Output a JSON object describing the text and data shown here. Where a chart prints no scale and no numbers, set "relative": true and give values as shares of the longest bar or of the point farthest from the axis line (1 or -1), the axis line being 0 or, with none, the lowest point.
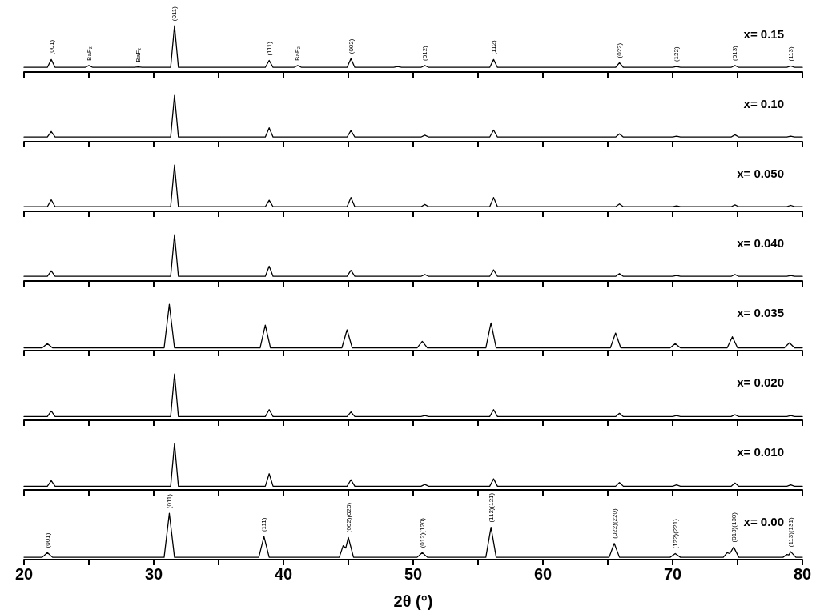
{
  "chart_data": [
    {
      "type": "line",
      "title": "x= 0.15",
      "relative": true,
      "color": "#000000",
      "marker": "none",
      "line_style": "solid",
      "tick_labels": false,
      "xlim": [
        20,
        80
      ],
      "xticks": [
        20,
        {
          "value": 25,
          "label": null
        },
        30,
        {
          "value": 35,
          "label": null
        },
        40,
        {
          "value": 45,
          "label": null
        },
        50,
        {
          "value": 55,
          "label": null
        },
        60,
        {
          "value": 65,
          "label": null
        },
        70,
        {
          "value": 75,
          "label": null
        },
        80
      ],
      "x": [
        20,
        21.8,
        22.1,
        22.4,
        24.7,
        25,
        25.3,
        28.5,
        28.8,
        29.1,
        31.3,
        31.6,
        31.9,
        38.6,
        38.9,
        39.2,
        40.8,
        41.1,
        41.4,
        44.9,
        45.2,
        45.5,
        48.5,
        48.8,
        49.1,
        50.6,
        50.9,
        51.2,
        55.9,
        56.2,
        56.5,
        65.6,
        65.9,
        66.2,
        70,
        70.3,
        70.6,
        74.5,
        74.8,
        75.1,
        78.8,
        79.1,
        79.4,
        80
      ],
      "values": [
        0.1,
        0.1,
        0.27,
        0.1,
        0.1,
        0.14,
        0.1,
        0.1,
        0.11,
        0.1,
        0.1,
        1,
        0.1,
        0.1,
        0.25,
        0.1,
        0.1,
        0.14,
        0.1,
        0.1,
        0.29,
        0.1,
        0.1,
        0.12,
        0.1,
        0.1,
        0.14,
        0.1,
        0.1,
        0.27,
        0.1,
        0.1,
        0.2,
        0.1,
        0.1,
        0.12,
        0.1,
        0.1,
        0.14,
        0.1,
        0.1,
        0.13,
        0.1,
        0.1
      ],
      "annotations": [
        {
          "text": "(001)",
          "x": 22.1,
          "y": 0.27
        },
        {
          "text": "BaF₂",
          "x": 25,
          "y": 0.14
        },
        {
          "text": "BaF₂",
          "x": 28.8,
          "y": 0.11
        },
        {
          "text": "(011)",
          "x": 31.6,
          "y": 1
        },
        {
          "text": "(111)",
          "x": 38.9,
          "y": 0.25
        },
        {
          "text": "BaF₂",
          "x": 41.1,
          "y": 0.14
        },
        {
          "text": "(002)",
          "x": 45.2,
          "y": 0.29
        },
        {
          "text": "(012)",
          "x": 50.9,
          "y": 0.14
        },
        {
          "text": "(112)",
          "x": 56.2,
          "y": 0.27
        },
        {
          "text": "(022)",
          "x": 65.9,
          "y": 0.2
        },
        {
          "text": "(122)",
          "x": 70.3,
          "y": 0.12
        },
        {
          "text": "(013)",
          "x": 74.8,
          "y": 0.14
        },
        {
          "text": "(113)",
          "x": 79.1,
          "y": 0.13
        }
      ]
    },
    {
      "type": "line",
      "title": "x= 0.10",
      "relative": true,
      "color": "#000000",
      "marker": "none",
      "line_style": "solid",
      "tick_labels": false,
      "xlim": [
        20,
        80
      ],
      "xticks": [
        20,
        {
          "value": 25,
          "label": null
        },
        30,
        {
          "value": 35,
          "label": null
        },
        40,
        {
          "value": 45,
          "label": null
        },
        50,
        {
          "value": 55,
          "label": null
        },
        60,
        {
          "value": 65,
          "label": null
        },
        70,
        {
          "value": 75,
          "label": null
        },
        80
      ],
      "x": [
        20,
        21.8,
        22.1,
        22.4,
        31.3,
        31.6,
        31.9,
        38.6,
        38.9,
        39.2,
        44.9,
        45.2,
        45.5,
        50.6,
        50.9,
        51.2,
        55.9,
        56.2,
        56.5,
        65.6,
        65.9,
        66.2,
        70,
        70.3,
        70.6,
        74.5,
        74.8,
        75.1,
        78.8,
        79.1,
        79.4,
        80
      ],
      "values": [
        0.1,
        0.1,
        0.22,
        0.1,
        0.1,
        1,
        0.1,
        0.1,
        0.3,
        0.1,
        0.1,
        0.24,
        0.1,
        0.1,
        0.14,
        0.1,
        0.1,
        0.25,
        0.1,
        0.1,
        0.17,
        0.1,
        0.1,
        0.12,
        0.1,
        0.1,
        0.15,
        0.1,
        0.1,
        0.12,
        0.1,
        0.1
      ]
    },
    {
      "type": "line",
      "title": "x= 0.050",
      "relative": true,
      "color": "#000000",
      "marker": "none",
      "line_style": "solid",
      "tick_labels": false,
      "xlim": [
        20,
        80
      ],
      "xticks": [
        20,
        {
          "value": 25,
          "label": null
        },
        30,
        {
          "value": 35,
          "label": null
        },
        40,
        {
          "value": 45,
          "label": null
        },
        50,
        {
          "value": 55,
          "label": null
        },
        60,
        {
          "value": 65,
          "label": null
        },
        70,
        {
          "value": 75,
          "label": null
        },
        80
      ],
      "x": [
        20,
        21.8,
        22.1,
        22.4,
        31.3,
        31.6,
        31.9,
        38.6,
        38.9,
        39.2,
        44.9,
        45.2,
        45.5,
        50.6,
        50.9,
        51.2,
        55.9,
        56.2,
        56.5,
        65.6,
        65.9,
        66.2,
        70,
        70.3,
        70.6,
        74.5,
        74.8,
        75.1,
        78.8,
        79.1,
        79.4,
        80
      ],
      "values": [
        0.1,
        0.1,
        0.25,
        0.1,
        0.1,
        1,
        0.1,
        0.1,
        0.24,
        0.1,
        0.1,
        0.3,
        0.1,
        0.1,
        0.15,
        0.1,
        0.1,
        0.3,
        0.1,
        0.1,
        0.16,
        0.1,
        0.1,
        0.12,
        0.1,
        0.1,
        0.14,
        0.1,
        0.1,
        0.13,
        0.1,
        0.1
      ]
    },
    {
      "type": "line",
      "title": "x= 0.040",
      "relative": true,
      "color": "#000000",
      "marker": "none",
      "line_style": "solid",
      "tick_labels": false,
      "xlim": [
        20,
        80
      ],
      "xticks": [
        20,
        {
          "value": 25,
          "label": null
        },
        30,
        {
          "value": 35,
          "label": null
        },
        40,
        {
          "value": 45,
          "label": null
        },
        50,
        {
          "value": 55,
          "label": null
        },
        60,
        {
          "value": 65,
          "label": null
        },
        70,
        {
          "value": 75,
          "label": null
        },
        80
      ],
      "x": [
        20,
        21.8,
        22.1,
        22.4,
        31.3,
        31.6,
        31.9,
        38.6,
        38.9,
        39.2,
        44.9,
        45.2,
        45.5,
        50.6,
        50.9,
        51.2,
        55.9,
        56.2,
        56.5,
        65.6,
        65.9,
        66.2,
        70,
        70.3,
        70.6,
        74.5,
        74.8,
        75.1,
        78.8,
        79.1,
        79.4,
        80
      ],
      "values": [
        0.1,
        0.1,
        0.22,
        0.1,
        0.1,
        1,
        0.1,
        0.1,
        0.32,
        0.1,
        0.1,
        0.23,
        0.1,
        0.1,
        0.14,
        0.1,
        0.1,
        0.24,
        0.1,
        0.1,
        0.16,
        0.1,
        0.1,
        0.12,
        0.1,
        0.1,
        0.14,
        0.1,
        0.1,
        0.12,
        0.1,
        0.1
      ]
    },
    {
      "type": "line",
      "title": "x= 0.035",
      "relative": true,
      "color": "#000000",
      "marker": "none",
      "line_style": "solid",
      "tick_labels": false,
      "xlim": [
        20,
        80
      ],
      "xticks": [
        20,
        {
          "value": 25,
          "label": null
        },
        30,
        {
          "value": 35,
          "label": null
        },
        40,
        {
          "value": 45,
          "label": null
        },
        50,
        {
          "value": 55,
          "label": null
        },
        60,
        {
          "value": 65,
          "label": null
        },
        70,
        {
          "value": 75,
          "label": null
        },
        80
      ],
      "x": [
        20,
        21.4,
        21.8,
        22.2,
        30.8,
        31.2,
        31.6,
        38.2,
        38.6,
        39,
        44.5,
        44.9,
        45.3,
        50.3,
        50.7,
        51.1,
        55.6,
        56,
        56.4,
        65.2,
        65.6,
        66,
        69.8,
        70.2,
        70.6,
        74.2,
        74.6,
        75,
        78.6,
        79,
        79.4,
        80
      ],
      "values": [
        0.06,
        0.06,
        0.15,
        0.06,
        0.06,
        1,
        0.06,
        0.06,
        0.55,
        0.06,
        0.06,
        0.45,
        0.06,
        0.06,
        0.2,
        0.06,
        0.06,
        0.6,
        0.06,
        0.06,
        0.38,
        0.06,
        0.06,
        0.15,
        0.06,
        0.06,
        0.3,
        0.06,
        0.06,
        0.17,
        0.06,
        0.06
      ]
    },
    {
      "type": "line",
      "title": "x= 0.020",
      "relative": true,
      "color": "#000000",
      "marker": "none",
      "line_style": "solid",
      "tick_labels": false,
      "xlim": [
        20,
        80
      ],
      "xticks": [
        20,
        {
          "value": 25,
          "label": null
        },
        30,
        {
          "value": 35,
          "label": null
        },
        40,
        {
          "value": 45,
          "label": null
        },
        50,
        {
          "value": 55,
          "label": null
        },
        60,
        {
          "value": 65,
          "label": null
        },
        70,
        {
          "value": 75,
          "label": null
        },
        80
      ],
      "x": [
        20,
        21.8,
        22.1,
        22.4,
        31.3,
        31.6,
        31.9,
        38.6,
        38.9,
        39.2,
        44.9,
        45.2,
        45.5,
        50.6,
        50.9,
        51.2,
        55.9,
        56.2,
        56.5,
        65.6,
        65.9,
        66.2,
        70,
        70.3,
        70.6,
        74.5,
        74.8,
        75.1,
        78.8,
        79.1,
        79.4,
        80
      ],
      "values": [
        0.08,
        0.08,
        0.2,
        0.08,
        0.08,
        1,
        0.08,
        0.08,
        0.23,
        0.08,
        0.08,
        0.18,
        0.08,
        0.08,
        0.1,
        0.08,
        0.08,
        0.23,
        0.08,
        0.08,
        0.15,
        0.08,
        0.08,
        0.1,
        0.08,
        0.08,
        0.12,
        0.08,
        0.08,
        0.1,
        0.08,
        0.08
      ]
    },
    {
      "type": "line",
      "title": "x= 0.010",
      "relative": true,
      "color": "#000000",
      "marker": "none",
      "line_style": "solid",
      "tick_labels": false,
      "xlim": [
        20,
        80
      ],
      "xticks": [
        20,
        {
          "value": 25,
          "label": null
        },
        30,
        {
          "value": 35,
          "label": null
        },
        40,
        {
          "value": 45,
          "label": null
        },
        50,
        {
          "value": 55,
          "label": null
        },
        60,
        {
          "value": 65,
          "label": null
        },
        70,
        {
          "value": 75,
          "label": null
        },
        80
      ],
      "x": [
        20,
        21.8,
        22.1,
        22.4,
        31.3,
        31.6,
        31.9,
        38.6,
        38.9,
        39.2,
        44.9,
        45.2,
        45.5,
        50.6,
        50.9,
        51.2,
        55.9,
        56.2,
        56.5,
        65.6,
        65.9,
        66.2,
        70,
        70.3,
        70.6,
        74.5,
        74.8,
        75.1,
        78.8,
        79.1,
        79.4,
        80
      ],
      "values": [
        0.08,
        0.08,
        0.2,
        0.08,
        0.08,
        1,
        0.08,
        0.08,
        0.35,
        0.08,
        0.08,
        0.22,
        0.08,
        0.08,
        0.12,
        0.08,
        0.08,
        0.24,
        0.08,
        0.08,
        0.16,
        0.08,
        0.08,
        0.11,
        0.08,
        0.08,
        0.15,
        0.08,
        0.08,
        0.11,
        0.08,
        0.08
      ]
    },
    {
      "type": "line",
      "title": "x= 0.00",
      "relative": true,
      "color": "#000000",
      "marker": "none",
      "line_style": "solid",
      "tick_labels": "x",
      "xlabel": "2θ (°)",
      "xlim": [
        20,
        80
      ],
      "xticks": [
        20,
        {
          "value": 25,
          "label": null
        },
        30,
        {
          "value": 35,
          "label": null
        },
        40,
        {
          "value": 45,
          "label": null
        },
        50,
        {
          "value": 55,
          "label": null
        },
        60,
        {
          "value": 65,
          "label": null
        },
        70,
        {
          "value": 75,
          "label": null
        },
        80
      ],
      "x": [
        20,
        21.4,
        21.8,
        22.2,
        30.8,
        31.2,
        31.6,
        38.1,
        38.5,
        38.9,
        44.3,
        44.6,
        44.8,
        45,
        45.4,
        50.3,
        50.7,
        51.1,
        55.6,
        56,
        56.4,
        65.1,
        65.5,
        65.9,
        69.8,
        70.2,
        70.6,
        73.9,
        74.2,
        74.4,
        74.7,
        75.1,
        78.5,
        78.8,
        78.95,
        79.1,
        79.5,
        80
      ],
      "values": [
        0.05,
        0.05,
        0.15,
        0.05,
        0.05,
        1,
        0.05,
        0.05,
        0.5,
        0.05,
        0.05,
        0.3,
        0.25,
        0.48,
        0.05,
        0.05,
        0.15,
        0.05,
        0.05,
        0.7,
        0.05,
        0.05,
        0.35,
        0.05,
        0.05,
        0.13,
        0.05,
        0.05,
        0.15,
        0.13,
        0.27,
        0.05,
        0.05,
        0.11,
        0.1,
        0.17,
        0.05,
        0.05
      ],
      "annotations": [
        {
          "text": "(001)",
          "x": 21.8,
          "y": 0.15
        },
        {
          "text": "(011)",
          "x": 31.2,
          "y": 1
        },
        {
          "text": "(111)",
          "x": 38.5,
          "y": 0.5
        },
        {
          "text": "(002)(020)",
          "x": 45,
          "y": 0.48
        },
        {
          "text": "(012)(120)",
          "x": 50.7,
          "y": 0.15
        },
        {
          "text": "(112)(121)",
          "x": 56,
          "y": 0.7
        },
        {
          "text": "(022)(220)",
          "x": 65.5,
          "y": 0.35
        },
        {
          "text": "(122)(221)",
          "x": 70.2,
          "y": 0.13
        },
        {
          "text": "(013)(130)",
          "x": 74.7,
          "y": 0.27
        },
        {
          "text": "(113)(131)",
          "x": 79.1,
          "y": 0.17
        }
      ]
    }
  ]
}
